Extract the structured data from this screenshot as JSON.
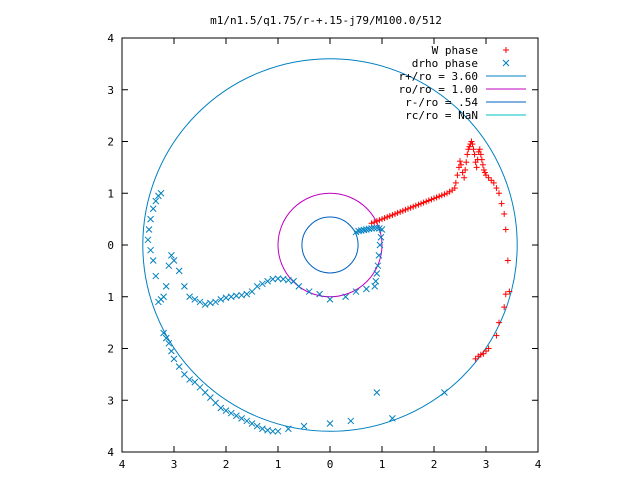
{
  "chart_data": {
    "type": "scatter",
    "title": "m1/n1.5/q1.75/r-+.15-j79/M100.0/512",
    "xlabel": "",
    "ylabel": "",
    "xlim": [
      -4,
      4
    ],
    "ylim": [
      -4,
      4
    ],
    "x_tick_labels": [
      "4",
      "3",
      "2",
      "1",
      "0",
      "1",
      "2",
      "3",
      "4"
    ],
    "y_tick_labels": [
      "4",
      "3",
      "2",
      "1",
      "0",
      "1",
      "2",
      "3",
      "4"
    ],
    "grid": false,
    "legend_position": "top-right",
    "circles": [
      {
        "label": "r+/ro = 3.60",
        "radius": 3.6,
        "color": "#0080c0"
      },
      {
        "label": "ro/ro = 1.00",
        "radius": 1.0,
        "color": "#c000c0"
      },
      {
        "label": "r-/ro = .54",
        "radius": 0.54,
        "color": "#0060c0"
      },
      {
        "label": "rc/ro = NaN",
        "radius": null,
        "color": "#00c0c0"
      }
    ],
    "series": [
      {
        "name": "W phase",
        "marker": "plus",
        "color": "#ff0000",
        "x": [
          0.8,
          0.85,
          0.9,
          0.95,
          1.0,
          1.05,
          1.1,
          1.15,
          1.2,
          1.25,
          1.3,
          1.35,
          1.4,
          1.45,
          1.5,
          1.55,
          1.6,
          1.65,
          1.7,
          1.75,
          1.8,
          1.85,
          1.9,
          1.95,
          2.0,
          2.05,
          2.1,
          2.15,
          2.2,
          2.25,
          2.3,
          2.35,
          2.4,
          2.42,
          2.45,
          2.48,
          2.5,
          2.52,
          2.55,
          2.58,
          2.6,
          2.62,
          2.64,
          2.66,
          2.68,
          2.7,
          2.72,
          2.74,
          2.76,
          2.78,
          2.8,
          2.82,
          2.84,
          2.86,
          2.88,
          2.9,
          2.92,
          2.94,
          2.96,
          2.98,
          3.0,
          3.05,
          3.1,
          3.15,
          3.2,
          3.25,
          3.3,
          3.35,
          3.38,
          3.42,
          3.45,
          3.38,
          3.35,
          3.25,
          3.2,
          3.05,
          3.0,
          2.95,
          2.9,
          2.85,
          2.8
        ],
        "y": [
          0.42,
          0.44,
          0.46,
          0.48,
          0.5,
          0.52,
          0.54,
          0.56,
          0.58,
          0.6,
          0.62,
          0.64,
          0.66,
          0.68,
          0.7,
          0.72,
          0.74,
          0.76,
          0.78,
          0.8,
          0.82,
          0.84,
          0.86,
          0.88,
          0.9,
          0.92,
          0.94,
          0.96,
          0.98,
          1.0,
          1.03,
          1.06,
          1.1,
          1.2,
          1.35,
          1.5,
          1.62,
          1.55,
          1.4,
          1.3,
          1.45,
          1.6,
          1.75,
          1.85,
          1.9,
          1.95,
          2.0,
          1.95,
          1.85,
          1.75,
          1.6,
          1.5,
          1.65,
          1.8,
          1.85,
          1.75,
          1.65,
          1.55,
          1.45,
          1.4,
          1.35,
          1.3,
          1.25,
          1.2,
          1.1,
          1.0,
          0.8,
          0.6,
          0.3,
          -0.3,
          -0.9,
          -0.95,
          -1.2,
          -1.5,
          -1.75,
          -2.0,
          -2.05,
          -2.1,
          -2.12,
          -2.15,
          -2.2
        ]
      },
      {
        "name": "drho phase",
        "marker": "cross",
        "color": "#0080c0",
        "x": [
          0.5,
          0.55,
          0.6,
          0.65,
          0.7,
          0.75,
          0.8,
          0.85,
          0.9,
          0.95,
          1.0,
          0.98,
          0.96,
          0.94,
          0.92,
          0.9,
          0.88,
          0.86,
          0.7,
          0.5,
          0.3,
          0.0,
          -0.2,
          -0.4,
          -0.6,
          -0.7,
          -0.8,
          -0.9,
          -1.0,
          -1.1,
          -1.2,
          -1.3,
          -1.4,
          -1.5,
          -1.6,
          -1.7,
          -1.8,
          -1.9,
          -2.0,
          -2.1,
          -2.2,
          -2.3,
          -2.4,
          -2.5,
          -2.6,
          -2.7,
          -2.8,
          -2.9,
          -3.0,
          -3.05,
          -3.1,
          -3.15,
          -3.2,
          -3.25,
          -3.3,
          -3.35,
          -3.4,
          -3.45,
          -3.5,
          -3.48,
          -3.45,
          -3.4,
          -3.35,
          -3.3,
          -3.25,
          -3.2,
          -3.15,
          -3.1,
          -3.05,
          -3.0,
          -2.9,
          -2.8,
          -2.7,
          -2.6,
          -2.5,
          -2.4,
          -2.3,
          -2.2,
          -2.1,
          -2.0,
          -1.9,
          -1.8,
          -1.7,
          -1.6,
          -1.5,
          -1.4,
          -1.3,
          -1.2,
          -1.1,
          -1.0,
          -0.8,
          -0.5,
          0.0,
          0.4,
          0.9,
          1.2,
          2.2
        ],
        "y": [
          0.25,
          0.27,
          0.28,
          0.29,
          0.3,
          0.31,
          0.32,
          0.33,
          0.33,
          0.32,
          0.3,
          0.15,
          0.0,
          -0.2,
          -0.4,
          -0.55,
          -0.7,
          -0.8,
          -0.85,
          -0.9,
          -1.0,
          -1.05,
          -0.95,
          -0.9,
          -0.8,
          -0.7,
          -0.68,
          -0.66,
          -0.65,
          -0.66,
          -0.7,
          -0.75,
          -0.8,
          -0.9,
          -0.95,
          -0.97,
          -0.98,
          -1.0,
          -1.02,
          -1.05,
          -1.1,
          -1.12,
          -1.15,
          -1.1,
          -1.05,
          -1.0,
          -0.8,
          -0.5,
          -0.3,
          -0.2,
          -0.4,
          -0.8,
          -1.0,
          -1.05,
          -1.1,
          -0.6,
          -0.3,
          -0.1,
          0.1,
          0.3,
          0.5,
          0.7,
          0.85,
          0.95,
          1.0,
          -1.7,
          -1.8,
          -1.9,
          -2.05,
          -2.2,
          -2.35,
          -2.5,
          -2.6,
          -2.65,
          -2.75,
          -2.85,
          -2.95,
          -3.05,
          -3.15,
          -3.2,
          -3.25,
          -3.3,
          -3.35,
          -3.4,
          -3.45,
          -3.5,
          -3.55,
          -3.58,
          -3.6,
          -3.6,
          -3.55,
          -3.5,
          -3.45,
          -3.4,
          -2.85,
          -3.35,
          -2.85
        ]
      }
    ]
  }
}
